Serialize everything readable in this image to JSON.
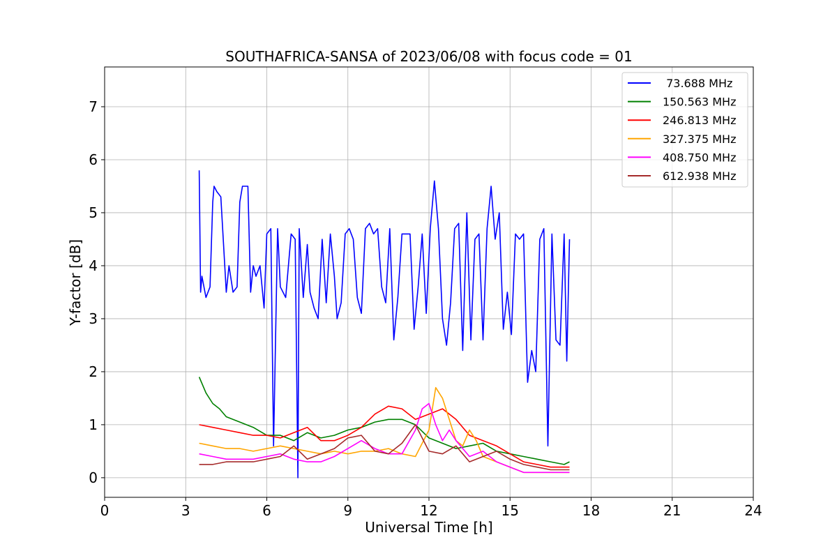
{
  "chart_data": {
    "type": "line",
    "title": "SOUTHAFRICA-SANSA of 2023/06/08 with focus code = 01",
    "xlabel": "Universal Time [h]",
    "ylabel": "Y-factor [dB]",
    "xlim": [
      0,
      24
    ],
    "ylim": [
      -0.37,
      7.75
    ],
    "x_ticks": [
      0,
      3,
      6,
      9,
      12,
      15,
      18,
      21,
      24
    ],
    "x_tick_labels": [
      "0",
      "3",
      "6",
      "9",
      "12",
      "15",
      "18",
      "21",
      "24"
    ],
    "y_ticks": [
      0,
      1,
      2,
      3,
      4,
      5,
      6,
      7
    ],
    "y_tick_labels": [
      "0",
      "1",
      "2",
      "3",
      "4",
      "5",
      "6",
      "7"
    ],
    "grid": true,
    "legend_position": "top-right",
    "legend_labels": [
      " 73.688 MHz",
      "150.563 MHz",
      "246.813 MHz",
      "327.375 MHz",
      "408.750 MHz",
      "612.938 MHz"
    ],
    "series": [
      {
        "name": " 73.688 MHz",
        "color": "#0000ff",
        "x": [
          3.5,
          3.55,
          3.6,
          3.75,
          3.9,
          4.0,
          4.05,
          4.15,
          4.3,
          4.5,
          4.6,
          4.75,
          4.9,
          5.0,
          5.1,
          5.3,
          5.4,
          5.5,
          5.6,
          5.75,
          5.9,
          6.0,
          6.15,
          6.25,
          6.4,
          6.5,
          6.7,
          6.9,
          7.05,
          7.15,
          7.2,
          7.35,
          7.5,
          7.6,
          7.75,
          7.9,
          8.05,
          8.2,
          8.35,
          8.5,
          8.6,
          8.75,
          8.9,
          9.05,
          9.2,
          9.35,
          9.5,
          9.65,
          9.8,
          9.95,
          10.1,
          10.25,
          10.4,
          10.55,
          10.7,
          10.85,
          11.0,
          11.15,
          11.3,
          11.45,
          11.6,
          11.75,
          11.9,
          12.05,
          12.2,
          12.35,
          12.5,
          12.65,
          12.8,
          12.95,
          13.1,
          13.25,
          13.4,
          13.55,
          13.7,
          13.85,
          14.0,
          14.15,
          14.3,
          14.45,
          14.6,
          14.75,
          14.9,
          15.05,
          15.2,
          15.35,
          15.5,
          15.65,
          15.8,
          15.95,
          16.1,
          16.25,
          16.4,
          16.55,
          16.7,
          16.85,
          17.0,
          17.1,
          17.2
        ],
        "y": [
          5.8,
          3.5,
          3.8,
          3.4,
          3.6,
          5.2,
          5.5,
          5.4,
          5.3,
          3.5,
          4.0,
          3.5,
          3.6,
          5.2,
          5.5,
          5.5,
          3.5,
          4.0,
          3.8,
          4.0,
          3.2,
          4.6,
          4.7,
          0.6,
          4.7,
          3.6,
          3.4,
          4.6,
          4.5,
          0.0,
          4.7,
          3.4,
          4.4,
          3.5,
          3.2,
          3.0,
          4.5,
          3.3,
          4.6,
          3.8,
          3.0,
          3.3,
          4.6,
          4.7,
          4.5,
          3.4,
          3.1,
          4.7,
          4.8,
          4.6,
          4.7,
          3.6,
          3.3,
          4.7,
          2.6,
          3.4,
          4.6,
          4.6,
          4.6,
          2.8,
          3.6,
          4.6,
          3.1,
          4.7,
          5.6,
          4.7,
          3.0,
          2.5,
          3.3,
          4.7,
          4.8,
          2.4,
          5.0,
          2.6,
          4.5,
          4.6,
          2.6,
          4.7,
          5.5,
          4.5,
          5.0,
          2.8,
          3.5,
          2.7,
          4.6,
          4.5,
          4.6,
          1.8,
          2.4,
          2.0,
          4.5,
          4.7,
          0.6,
          4.6,
          2.6,
          2.5,
          4.6,
          2.2,
          4.5
        ]
      },
      {
        "name": "150.563 MHz",
        "color": "#008000",
        "x": [
          3.5,
          3.75,
          4.0,
          4.25,
          4.5,
          5.0,
          5.5,
          6.0,
          6.5,
          7.0,
          7.5,
          8.0,
          8.5,
          9.0,
          9.5,
          10.0,
          10.5,
          11.0,
          11.5,
          12.0,
          12.5,
          13.0,
          13.5,
          14.0,
          14.5,
          15.0,
          15.5,
          16.0,
          16.5,
          17.0,
          17.2
        ],
        "y": [
          1.9,
          1.6,
          1.4,
          1.3,
          1.15,
          1.05,
          0.95,
          0.8,
          0.8,
          0.7,
          0.85,
          0.75,
          0.8,
          0.9,
          0.95,
          1.05,
          1.1,
          1.1,
          1.0,
          0.75,
          0.65,
          0.55,
          0.6,
          0.65,
          0.5,
          0.45,
          0.4,
          0.35,
          0.3,
          0.25,
          0.3
        ]
      },
      {
        "name": "246.813 MHz",
        "color": "#ff0000",
        "x": [
          3.5,
          4.0,
          4.5,
          5.0,
          5.5,
          6.0,
          6.5,
          7.0,
          7.5,
          8.0,
          8.5,
          9.0,
          9.5,
          10.0,
          10.5,
          11.0,
          11.5,
          12.0,
          12.5,
          13.0,
          13.5,
          14.0,
          14.5,
          15.0,
          15.5,
          16.0,
          16.5,
          17.0,
          17.2
        ],
        "y": [
          1.0,
          0.95,
          0.9,
          0.85,
          0.8,
          0.8,
          0.75,
          0.85,
          0.95,
          0.7,
          0.7,
          0.8,
          0.95,
          1.2,
          1.35,
          1.3,
          1.1,
          1.2,
          1.3,
          1.1,
          0.8,
          0.7,
          0.6,
          0.45,
          0.3,
          0.25,
          0.2,
          0.2,
          0.2
        ]
      },
      {
        "name": "327.375 MHz",
        "color": "#ffa500",
        "x": [
          3.5,
          4.0,
          4.5,
          5.0,
          5.5,
          6.0,
          6.5,
          7.0,
          7.5,
          8.0,
          8.5,
          9.0,
          9.5,
          10.0,
          10.5,
          11.0,
          11.5,
          12.0,
          12.25,
          12.5,
          12.75,
          13.0,
          13.25,
          13.5,
          13.75,
          14.0,
          14.5,
          15.0,
          15.5,
          16.0,
          16.5,
          17.0,
          17.2
        ],
        "y": [
          0.65,
          0.6,
          0.55,
          0.55,
          0.5,
          0.55,
          0.6,
          0.55,
          0.5,
          0.45,
          0.5,
          0.45,
          0.5,
          0.5,
          0.55,
          0.45,
          0.4,
          0.9,
          1.7,
          1.5,
          1.1,
          0.7,
          0.6,
          0.9,
          0.7,
          0.4,
          0.3,
          0.2,
          0.1,
          0.1,
          0.1,
          0.1,
          0.1
        ]
      },
      {
        "name": "408.750 MHz",
        "color": "#ff00ff",
        "x": [
          3.5,
          4.0,
          4.5,
          5.0,
          5.5,
          6.0,
          6.5,
          7.0,
          7.5,
          8.0,
          8.5,
          9.0,
          9.5,
          10.0,
          10.5,
          11.0,
          11.5,
          11.75,
          12.0,
          12.25,
          12.5,
          12.75,
          13.0,
          13.5,
          14.0,
          14.5,
          15.0,
          15.5,
          16.0,
          16.5,
          17.0,
          17.2
        ],
        "y": [
          0.45,
          0.4,
          0.35,
          0.35,
          0.35,
          0.4,
          0.45,
          0.35,
          0.3,
          0.3,
          0.4,
          0.55,
          0.7,
          0.55,
          0.45,
          0.45,
          0.9,
          1.3,
          1.4,
          1.0,
          0.7,
          0.9,
          0.7,
          0.4,
          0.5,
          0.3,
          0.2,
          0.1,
          0.1,
          0.1,
          0.1,
          0.1
        ]
      },
      {
        "name": "612.938 MHz",
        "color": "#a52a2a",
        "x": [
          3.5,
          4.0,
          4.5,
          5.0,
          5.5,
          6.0,
          6.5,
          7.0,
          7.5,
          8.0,
          8.5,
          9.0,
          9.5,
          10.0,
          10.5,
          11.0,
          11.5,
          12.0,
          12.5,
          13.0,
          13.5,
          14.0,
          14.5,
          15.0,
          15.5,
          16.0,
          16.5,
          17.0,
          17.2
        ],
        "y": [
          0.25,
          0.25,
          0.3,
          0.3,
          0.3,
          0.35,
          0.4,
          0.6,
          0.35,
          0.45,
          0.55,
          0.75,
          0.8,
          0.5,
          0.45,
          0.65,
          1.0,
          0.5,
          0.45,
          0.6,
          0.3,
          0.4,
          0.5,
          0.35,
          0.25,
          0.2,
          0.15,
          0.15,
          0.15
        ]
      }
    ]
  }
}
